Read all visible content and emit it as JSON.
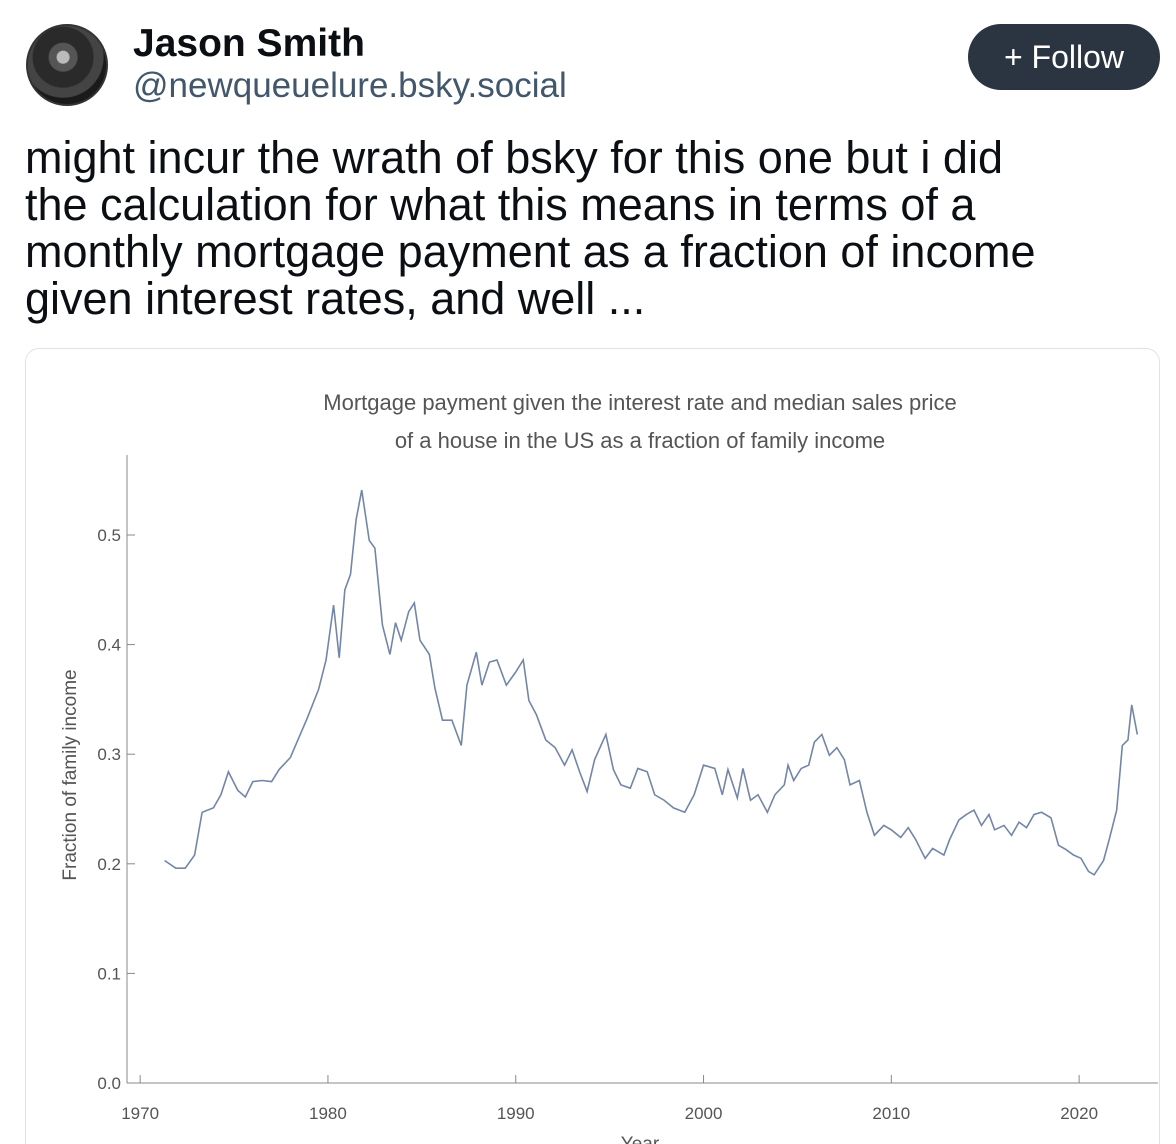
{
  "author": {
    "name": "Jason Smith",
    "handle": "@newqueuelure.bsky.social"
  },
  "follow_button": "+ Follow",
  "post": {
    "text_lines": [
      "might incur the wrath of bsky for this one but i did",
      "the calculation for what this means in terms of a",
      "monthly mortgage payment as a fraction of income",
      "given interest rates, and well ..."
    ]
  },
  "chart_data": {
    "type": "line",
    "title_lines": [
      "Mortgage payment given the interest rate and median sales price",
      "of a house in the US as a fraction of family income"
    ],
    "x_label": "Year",
    "y_label": "Fraction of family income",
    "xlim": [
      1969.3,
      2024.2
    ],
    "ylim": [
      0,
      0.573
    ],
    "xticks": [
      1970,
      1980,
      1990,
      2000,
      2010,
      2020
    ],
    "yticks": [
      {
        "value": 0,
        "label": "0.0"
      },
      0.1,
      0.2,
      0.3,
      0.4,
      0.5
    ],
    "x": [
      1971.3,
      1971.9,
      1972.4,
      1972.9,
      1973.3,
      1973.9,
      1974.3,
      1974.7,
      1975.2,
      1975.6,
      1976.0,
      1976.5,
      1977.0,
      1977.4,
      1978.0,
      1978.4,
      1978.9,
      1979.5,
      1979.9,
      1980.3,
      1980.6,
      1980.9,
      1981.2,
      1981.5,
      1981.8,
      1982.2,
      1982.5,
      1982.9,
      1983.3,
      1983.6,
      1983.9,
      1984.3,
      1984.6,
      1984.9,
      1985.4,
      1985.7,
      1986.1,
      1986.6,
      1987.1,
      1987.4,
      1987.9,
      1988.2,
      1988.6,
      1989.0,
      1989.5,
      1990.0,
      1990.4,
      1990.7,
      1991.1,
      1991.6,
      1992.1,
      1992.6,
      1993.0,
      1993.4,
      1993.8,
      1994.2,
      1994.8,
      1995.2,
      1995.6,
      1996.1,
      1996.5,
      1997.0,
      1997.4,
      1997.9,
      1998.4,
      1999.0,
      1999.5,
      2000.0,
      2000.6,
      2001.0,
      2001.3,
      2001.8,
      2002.1,
      2002.5,
      2002.9,
      2003.4,
      2003.8,
      2004.3,
      2004.5,
      2004.8,
      2005.2,
      2005.6,
      2005.9,
      2006.3,
      2006.7,
      2007.1,
      2007.5,
      2007.8,
      2008.3,
      2008.7,
      2009.1,
      2009.6,
      2010.0,
      2010.5,
      2010.9,
      2011.3,
      2011.8,
      2012.2,
      2012.8,
      2013.1,
      2013.6,
      2014.0,
      2014.4,
      2014.8,
      2015.2,
      2015.5,
      2016.0,
      2016.4,
      2016.8,
      2017.2,
      2017.6,
      2018.0,
      2018.5,
      2018.9,
      2019.3,
      2019.7,
      2020.1,
      2020.5,
      2020.8,
      2021.3,
      2021.6,
      2022.0,
      2022.3,
      2022.6,
      2022.8,
      2023.1
    ],
    "series": [
      {
        "color": "#7386a8",
        "values": [
          0.203,
          0.196,
          0.196,
          0.208,
          0.247,
          0.251,
          0.263,
          0.284,
          0.267,
          0.261,
          0.275,
          0.276,
          0.275,
          0.286,
          0.297,
          0.313,
          0.333,
          0.359,
          0.386,
          0.436,
          0.388,
          0.45,
          0.464,
          0.514,
          0.541,
          0.495,
          0.488,
          0.418,
          0.391,
          0.42,
          0.404,
          0.43,
          0.438,
          0.404,
          0.391,
          0.36,
          0.331,
          0.331,
          0.308,
          0.363,
          0.393,
          0.363,
          0.384,
          0.386,
          0.363,
          0.375,
          0.386,
          0.349,
          0.336,
          0.313,
          0.306,
          0.29,
          0.304,
          0.284,
          0.266,
          0.295,
          0.318,
          0.286,
          0.272,
          0.269,
          0.287,
          0.284,
          0.263,
          0.258,
          0.251,
          0.247,
          0.263,
          0.29,
          0.287,
          0.263,
          0.286,
          0.26,
          0.287,
          0.258,
          0.263,
          0.247,
          0.263,
          0.272,
          0.29,
          0.276,
          0.287,
          0.29,
          0.311,
          0.318,
          0.299,
          0.306,
          0.295,
          0.272,
          0.276,
          0.247,
          0.226,
          0.235,
          0.231,
          0.224,
          0.233,
          0.222,
          0.205,
          0.214,
          0.208,
          0.222,
          0.24,
          0.245,
          0.249,
          0.235,
          0.245,
          0.231,
          0.235,
          0.226,
          0.238,
          0.233,
          0.245,
          0.247,
          0.242,
          0.217,
          0.213,
          0.208,
          0.205,
          0.193,
          0.19,
          0.203,
          0.222,
          0.249,
          0.308,
          0.313,
          0.345,
          0.318
        ]
      }
    ]
  }
}
